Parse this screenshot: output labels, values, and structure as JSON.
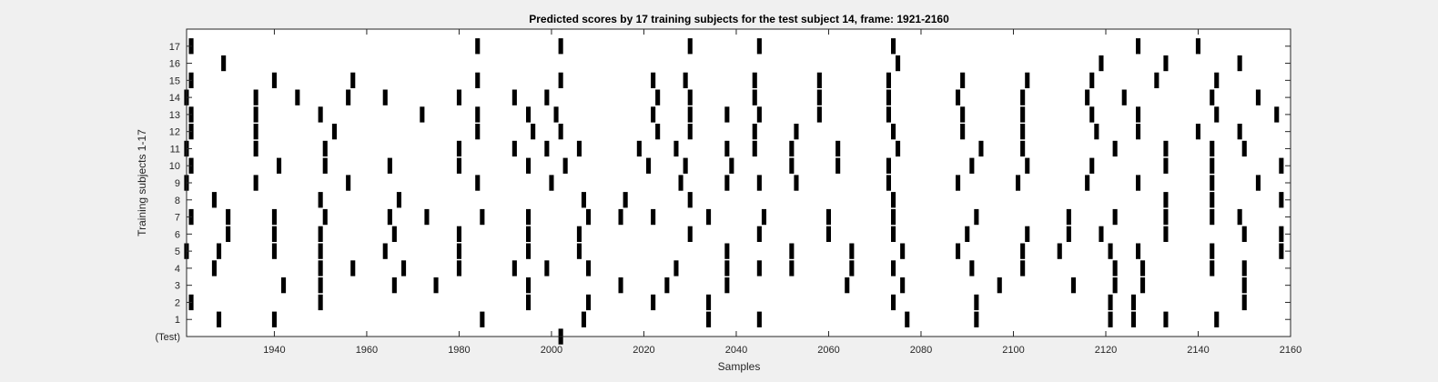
{
  "chart_data": {
    "type": "raster",
    "title": "Predicted scores by 17 training subjects for the test subject 14, frame: 1921-2160",
    "xlabel": "Samples",
    "ylabel": "Training subjects 1-17",
    "xlim": [
      1921,
      2160
    ],
    "ylim": [
      0,
      18
    ],
    "grid": false,
    "x_ticks": [
      1940,
      1960,
      1980,
      2000,
      2020,
      2040,
      2060,
      2080,
      2100,
      2120,
      2140,
      2160
    ],
    "y_ticks": [
      {
        "value": 0,
        "label": "(Test)"
      },
      {
        "value": 1,
        "label": "1"
      },
      {
        "value": 2,
        "label": "2"
      },
      {
        "value": 3,
        "label": "3"
      },
      {
        "value": 4,
        "label": "4"
      },
      {
        "value": 5,
        "label": "5"
      },
      {
        "value": 6,
        "label": "6"
      },
      {
        "value": 7,
        "label": "7"
      },
      {
        "value": 8,
        "label": "8"
      },
      {
        "value": 9,
        "label": "9"
      },
      {
        "value": 10,
        "label": "10"
      },
      {
        "value": 11,
        "label": "11"
      },
      {
        "value": 12,
        "label": "12"
      },
      {
        "value": 13,
        "label": "13"
      },
      {
        "value": 14,
        "label": "14"
      },
      {
        "value": 15,
        "label": "15"
      },
      {
        "value": 16,
        "label": "16"
      },
      {
        "value": 17,
        "label": "17"
      }
    ],
    "mark_color": "#000000",
    "rows": [
      {
        "row": 0,
        "x": [
          2002
        ]
      },
      {
        "row": 1,
        "x": [
          1928,
          1940,
          1985,
          2007,
          2034,
          2045,
          2077,
          2092,
          2121,
          2126,
          2133,
          2144
        ]
      },
      {
        "row": 2,
        "x": [
          1922,
          1950,
          1995,
          2008,
          2022,
          2034,
          2074,
          2092,
          2121,
          2126,
          2150
        ]
      },
      {
        "row": 3,
        "x": [
          1942,
          1950,
          1966,
          1975,
          1995,
          2015,
          2025,
          2038,
          2064,
          2076,
          2097,
          2113,
          2122,
          2128,
          2150
        ]
      },
      {
        "row": 4,
        "x": [
          1927,
          1950,
          1957,
          1968,
          1980,
          1992,
          1999,
          2008,
          2027,
          2038,
          2045,
          2052,
          2065,
          2074,
          2091,
          2102,
          2122,
          2128,
          2143,
          2150
        ]
      },
      {
        "row": 5,
        "x": [
          1921,
          1928,
          1940,
          1950,
          1964,
          1980,
          1995,
          2006,
          2038,
          2052,
          2065,
          2076,
          2088,
          2102,
          2110,
          2121,
          2127,
          2143,
          2158
        ]
      },
      {
        "row": 6,
        "x": [
          1930,
          1940,
          1950,
          1966,
          1980,
          1995,
          2006,
          2030,
          2045,
          2060,
          2074,
          2090,
          2103,
          2112,
          2119,
          2133,
          2150,
          2158
        ]
      },
      {
        "row": 7,
        "x": [
          1922,
          1930,
          1940,
          1951,
          1965,
          1973,
          1985,
          1995,
          2008,
          2015,
          2022,
          2034,
          2046,
          2060,
          2074,
          2092,
          2112,
          2122,
          2133,
          2143,
          2149
        ]
      },
      {
        "row": 8,
        "x": [
          1927,
          1950,
          1967,
          2007,
          2016,
          2030,
          2074,
          2133,
          2143,
          2158
        ]
      },
      {
        "row": 9,
        "x": [
          1921,
          1936,
          1956,
          1984,
          2000,
          2028,
          2038,
          2045,
          2053,
          2073,
          2088,
          2101,
          2116,
          2127,
          2143,
          2153
        ]
      },
      {
        "row": 10,
        "x": [
          1922,
          1941,
          1951,
          1965,
          1980,
          1995,
          2003,
          2021,
          2029,
          2039,
          2052,
          2062,
          2073,
          2091,
          2103,
          2117,
          2133,
          2143,
          2158
        ]
      },
      {
        "row": 11,
        "x": [
          1921,
          1936,
          1951,
          1980,
          1992,
          1999,
          2006,
          2019,
          2027,
          2038,
          2044,
          2052,
          2062,
          2075,
          2093,
          2102,
          2122,
          2133,
          2143,
          2150
        ]
      },
      {
        "row": 12,
        "x": [
          1922,
          1936,
          1953,
          1984,
          1996,
          2002,
          2023,
          2030,
          2044,
          2053,
          2074,
          2089,
          2102,
          2118,
          2127,
          2140,
          2149
        ]
      },
      {
        "row": 13,
        "x": [
          1922,
          1936,
          1950,
          1972,
          1984,
          1995,
          2001,
          2022,
          2030,
          2038,
          2045,
          2058,
          2073,
          2089,
          2102,
          2117,
          2127,
          2144,
          2157
        ]
      },
      {
        "row": 14,
        "x": [
          1921,
          1936,
          1945,
          1956,
          1964,
          1980,
          1992,
          1999,
          2023,
          2030,
          2044,
          2058,
          2073,
          2088,
          2102,
          2116,
          2124,
          2143,
          2153
        ]
      },
      {
        "row": 15,
        "x": [
          1922,
          1940,
          1957,
          1984,
          2002,
          2022,
          2029,
          2044,
          2058,
          2073,
          2089,
          2103,
          2117,
          2131,
          2144
        ]
      },
      {
        "row": 16,
        "x": [
          1929,
          2075,
          2119,
          2133,
          2149
        ]
      },
      {
        "row": 17,
        "x": [
          1922,
          1984,
          2002,
          2030,
          2045,
          2074,
          2127,
          2140
        ]
      }
    ]
  }
}
